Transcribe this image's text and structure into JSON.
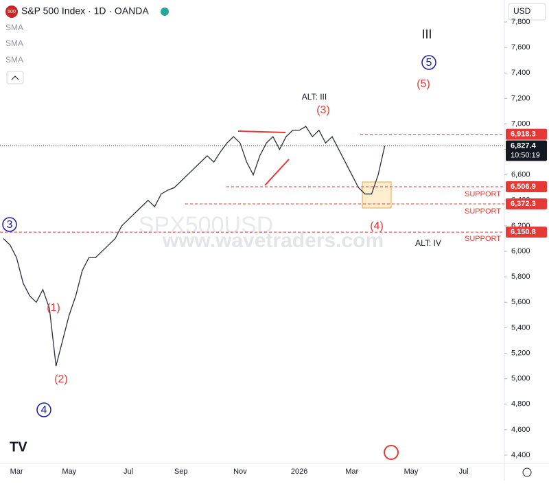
{
  "header": {
    "title": "S&P 500 Index · 1D · OANDA",
    "indicators": [
      "SMA",
      "SMA",
      "SMA"
    ],
    "currency": "USD",
    "countdown": "10:50:19",
    "watermark": "SPX500USD",
    "website": "www.wavetraders.com"
  },
  "chart_data": {
    "type": "line",
    "color": "#2a2e39",
    "categories": [
      null,
      null,
      "Mar",
      null,
      null,
      null,
      null,
      null,
      null,
      null,
      "May",
      null,
      null,
      null,
      null,
      null,
      null,
      null,
      null,
      "Jul",
      null,
      null,
      null,
      null,
      null,
      null,
      null,
      "Sep",
      null,
      null,
      null,
      null,
      null,
      null,
      null,
      null,
      "Nov",
      null,
      null,
      null,
      null,
      null,
      null,
      null,
      null,
      "2026",
      null,
      null,
      null,
      null,
      null,
      null,
      null,
      "Mar",
      null,
      null,
      null,
      null,
      null,
      null,
      null,
      null,
      "May",
      null,
      null,
      null,
      null,
      null,
      null,
      null,
      "Jul",
      null,
      null,
      null,
      null,
      null
    ],
    "series": [
      {
        "name": "S&P 500 Index",
        "values": [
          6100,
          6050,
          5950,
          5750,
          5650,
          5600,
          5700,
          5550,
          5100,
          5300,
          5500,
          5650,
          5850,
          5950,
          5950,
          6000,
          6050,
          6100,
          6200,
          6250,
          6300,
          6350,
          6400,
          6350,
          6450,
          6480,
          6500,
          6550,
          6600,
          6650,
          6700,
          6750,
          6700,
          6780,
          6850,
          6900,
          6850,
          6700,
          6600,
          6750,
          6850,
          6900,
          6800,
          6900,
          6950,
          6950,
          6980,
          6900,
          6950,
          6850,
          6900,
          6800,
          6700,
          6600,
          6500,
          6450,
          6450,
          6600,
          6827.4,
          null,
          null,
          null,
          null,
          null,
          null,
          null,
          null,
          null,
          null,
          null,
          null,
          null,
          null,
          null,
          null,
          null
        ]
      }
    ],
    "ylim": [
      4400,
      7800
    ],
    "yticks": [
      {
        "value": 4400,
        "label": "4,400"
      },
      {
        "value": 4600,
        "label": "4,600"
      },
      {
        "value": 4800,
        "label": "4,800"
      },
      {
        "value": 5000,
        "label": "5,000"
      },
      {
        "value": 5200,
        "label": "5,200"
      },
      {
        "value": 5400,
        "label": "5,400"
      },
      {
        "value": 5600,
        "label": "5,600"
      },
      {
        "value": 5800,
        "label": "5,800"
      },
      {
        "value": 6000,
        "label": "6,000"
      },
      {
        "value": 6200,
        "label": "6,200"
      },
      {
        "value": 6400,
        "label": "6,400"
      },
      {
        "value": 6600,
        "label": "6,600"
      },
      {
        "value": 6800,
        "label": "6,800"
      },
      {
        "value": 7000,
        "label": "7,000"
      },
      {
        "value": 7200,
        "label": "7,200"
      },
      {
        "value": 7400,
        "label": "7,400"
      },
      {
        "value": 7600,
        "label": "7,600"
      },
      {
        "value": 7800,
        "label": "7,800"
      }
    ],
    "levels": [
      {
        "value": 6918.3,
        "label": "6,918.3"
      },
      {
        "value": 6506.9,
        "label": "6,506.9",
        "note": "SUPPORT"
      },
      {
        "value": 6372.3,
        "label": "6,372.3",
        "note": "SUPPORT"
      },
      {
        "value": 6150.8,
        "label": "6,150.8",
        "note": "SUPPORT"
      }
    ],
    "last_price": {
      "value": 6827.4,
      "label": "6,827.4"
    },
    "annotations": [
      "III",
      "5",
      "(5)",
      "ALT: III",
      "(3)",
      "(4)",
      "ALT: IV",
      "3",
      "(1)",
      "(2)",
      "4"
    ]
  }
}
